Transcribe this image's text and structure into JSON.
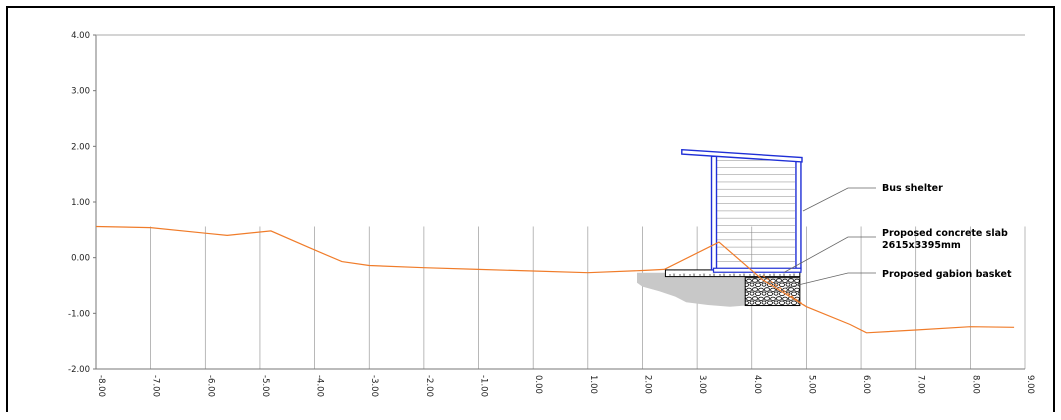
{
  "chart_data": {
    "type": "line",
    "title": "",
    "xlabel": "",
    "ylabel": "",
    "xlim": [
      -8,
      9
    ],
    "ylim": [
      -2,
      4
    ],
    "grid": "vertical",
    "x_tick_labels": [
      "-8.00",
      "-7.00",
      "-6.00",
      "-5.00",
      "-4.00",
      "-3.00",
      "-2.00",
      "-1.00",
      "0.00",
      "1.00",
      "2.00",
      "3.00",
      "4.00",
      "5.00",
      "6.00",
      "7.00",
      "8.00",
      "9.00"
    ],
    "y_tick_labels": [
      "4.00",
      "3.00",
      "2.00",
      "1.00",
      "0.00",
      "-1.00",
      "-2.00"
    ],
    "series": [
      {
        "color": "#f07c2a",
        "x": [
          -8.0,
          -7.0,
          -6.0,
          -5.6,
          -4.8,
          -4.1,
          -3.5,
          -3.0,
          -2.0,
          -1.0,
          0.0,
          1.0,
          2.0,
          2.4,
          3.4,
          4.2,
          5.0,
          5.8,
          6.1,
          7.0,
          8.0,
          8.8
        ],
        "y": [
          0.56,
          0.54,
          0.44,
          0.4,
          0.48,
          0.18,
          -0.07,
          -0.14,
          -0.18,
          -0.21,
          -0.24,
          -0.27,
          -0.23,
          -0.21,
          0.28,
          -0.4,
          -0.88,
          -1.2,
          -1.35,
          -1.3,
          -1.24,
          -1.25
        ]
      }
    ]
  },
  "annotations": {
    "bus_shelter": "Bus shelter",
    "concrete_slab_line1": "Proposed concrete slab",
    "concrete_slab_line2": "2615x3395mm",
    "gabion": "Proposed gabion basket"
  },
  "colors": {
    "ground_line": "#f07c2a",
    "shelter": "#1f2fd6",
    "fill_area": "#c8c8c8",
    "grid": "#9a9a9a"
  }
}
